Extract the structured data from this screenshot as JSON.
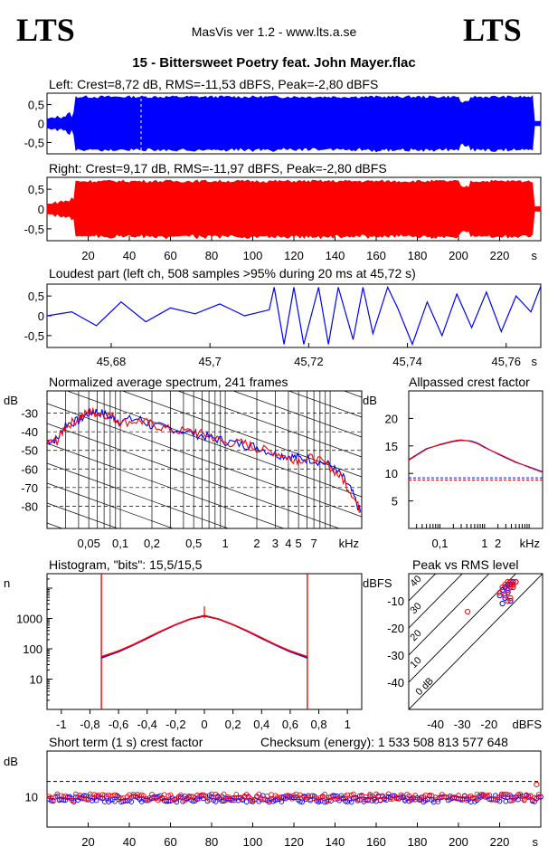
{
  "header": {
    "logo_left": "LTS",
    "logo_right": "LTS",
    "app_title": "MasVis ver 1.2 - www.lts.a.se",
    "file_title": "15 - Bittersweet Poetry feat. John Mayer.flac"
  },
  "colors": {
    "left": "#0000ff",
    "right": "#ff0000"
  },
  "chart_data": [
    {
      "id": "left-waveform",
      "type": "area",
      "title": "Left: Crest=8,72 dB, RMS=-11,53 dBFS, Peak=-2,80 dBFS",
      "ylim": [
        -0.8,
        0.8
      ],
      "yticks": [
        "0,5",
        "0",
        "-0,5"
      ],
      "xlim": [
        0,
        240
      ],
      "envelope_amplitude": 0.72,
      "start_s": 14,
      "end_s": 236,
      "marker_s": 45.72
    },
    {
      "id": "right-waveform",
      "type": "area",
      "title": "Right: Crest=9,17 dB, RMS=-11,97 dBFS, Peak=-2,80 dBFS",
      "ylim": [
        -0.8,
        0.8
      ],
      "yticks": [
        "0,5",
        "0",
        "-0,5"
      ],
      "xlim": [
        0,
        240
      ],
      "xticks": [
        "20",
        "40",
        "60",
        "80",
        "100",
        "120",
        "140",
        "160",
        "180",
        "200",
        "220"
      ],
      "xunit": "s",
      "envelope_amplitude": 0.72,
      "start_s": 14,
      "end_s": 236
    },
    {
      "id": "loudest-part",
      "type": "line",
      "title": "Loudest part (left  ch, 508 samples >95% during 20 ms at 45,72 s)",
      "xlim": [
        45.667,
        45.767
      ],
      "ylim": [
        -0.8,
        0.8
      ],
      "yticks": [
        "0,5",
        "0",
        "-0,5"
      ],
      "xticks": [
        "45,68",
        "45,7",
        "45,72",
        "45,74",
        "45,76"
      ],
      "xunit": "s",
      "x": [
        45.667,
        45.672,
        45.677,
        45.682,
        45.687,
        45.692,
        45.697,
        45.702,
        45.707,
        45.712,
        45.713,
        45.715,
        45.717,
        45.719,
        45.722,
        45.724,
        45.726,
        45.729,
        45.731,
        45.733,
        45.736,
        45.738,
        45.741,
        45.744,
        45.747,
        45.75,
        45.753,
        45.756,
        45.759,
        45.762,
        45.765,
        45.767
      ],
      "y": [
        0.0,
        0.1,
        -0.25,
        0.35,
        -0.15,
        0.2,
        0.05,
        0.3,
        0.0,
        0.15,
        0.72,
        -0.72,
        0.72,
        -0.72,
        0.72,
        -0.72,
        0.72,
        -0.6,
        0.72,
        -0.45,
        0.72,
        0.2,
        -0.72,
        0.35,
        -0.5,
        0.55,
        -0.3,
        0.6,
        -0.4,
        0.5,
        0.1,
        0.75
      ]
    },
    {
      "id": "average-spectrum",
      "type": "line",
      "title": "Normalized average spectrum, 241 frames",
      "yunit": "dB",
      "yticks": [
        "-30",
        "-40",
        "-50",
        "-60",
        "-70",
        "-80"
      ],
      "ylim": [
        -92,
        -18
      ],
      "xscale": "log",
      "xlim": [
        0.02,
        20
      ],
      "xticks": [
        "0,05",
        "0,1",
        "0,2",
        "0,5",
        "1",
        "2",
        "3",
        "4",
        "5",
        "7"
      ],
      "xunit": "kHz",
      "x": [
        0.02,
        0.025,
        0.03,
        0.04,
        0.05,
        0.06,
        0.08,
        0.1,
        0.15,
        0.2,
        0.3,
        0.5,
        0.7,
        1,
        1.5,
        2,
        3,
        4,
        5,
        7,
        10,
        13,
        16,
        20
      ],
      "series": [
        {
          "values": [
            -45,
            -44,
            -36,
            -34,
            -30,
            -29,
            -32,
            -34,
            -33,
            -37,
            -38,
            -41,
            -43,
            -45,
            -47,
            -48,
            -52,
            -53,
            -54,
            -55,
            -58,
            -64,
            -72,
            -85
          ]
        },
        {
          "values": [
            -46,
            -45,
            -37,
            -33,
            -29,
            -30,
            -31,
            -35,
            -34,
            -36,
            -39,
            -40,
            -42,
            -46,
            -46,
            -49,
            -51,
            -54,
            -55,
            -54,
            -59,
            -65,
            -73,
            -84
          ]
        }
      ]
    },
    {
      "id": "allpassed-crest",
      "type": "line",
      "title": "Allpassed crest factor",
      "yunit": "dB",
      "yticks": [
        "20",
        "15",
        "10",
        "5"
      ],
      "ylim": [
        0,
        25
      ],
      "xscale": "log",
      "xlim": [
        0.02,
        20
      ],
      "xticks": [
        "0,1",
        "1",
        "2"
      ],
      "xunit": "kHz",
      "x": [
        0.02,
        0.05,
        0.1,
        0.2,
        0.3,
        0.5,
        0.7,
        1,
        2,
        5,
        10,
        20
      ],
      "series": [
        {
          "values": [
            12.5,
            14.5,
            15.2,
            15.8,
            16.0,
            15.9,
            15.5,
            14.8,
            13.5,
            12.0,
            11.2,
            10.3
          ]
        },
        {
          "values": [
            12.4,
            14.4,
            15.3,
            15.9,
            16.1,
            15.8,
            15.4,
            14.7,
            13.6,
            12.1,
            11.1,
            10.2
          ]
        }
      ],
      "reference_levels": [
        9.2,
        8.8
      ]
    },
    {
      "id": "histogram",
      "type": "line",
      "title": "Histogram, \"bits\": 15,5/15,5",
      "yunit": "n",
      "yscale": "log",
      "ylim": [
        1,
        30000
      ],
      "yticks": [
        "1000",
        "100",
        "10"
      ],
      "xlim": [
        -1.1,
        1.1
      ],
      "xticks": [
        "-1",
        "-0,8",
        "-0,6",
        "-0,4",
        "-0,2",
        "0",
        "0,2",
        "0,4",
        "0,6",
        "0,8",
        "1"
      ],
      "x": [
        -0.72,
        -0.6,
        -0.5,
        -0.4,
        -0.3,
        -0.2,
        -0.1,
        0.0,
        0.1,
        0.2,
        0.3,
        0.4,
        0.5,
        0.6,
        0.72
      ],
      "series": [
        {
          "values": [
            50,
            80,
            130,
            220,
            380,
            620,
            950,
            1200,
            950,
            620,
            380,
            220,
            130,
            80,
            50
          ]
        },
        {
          "values": [
            55,
            85,
            135,
            230,
            390,
            630,
            960,
            1250,
            960,
            630,
            390,
            230,
            135,
            85,
            55
          ]
        }
      ],
      "clip_level": 0.72,
      "center_spike": 2500
    },
    {
      "id": "peak-vs-rms",
      "type": "scatter",
      "title": "Peak vs RMS level",
      "yunit": "dBFS",
      "xunit": "dBFS",
      "xlim": [
        -50,
        0
      ],
      "ylim": [
        -50,
        0
      ],
      "xticks": [
        "-40",
        "-30",
        "-20"
      ],
      "yticks": [
        "-10",
        "-20",
        "-30",
        "-40"
      ],
      "diagonal_labels": [
        "40",
        "30",
        "20",
        "10",
        "0 dB"
      ],
      "series": [
        {
          "x": [
            -12,
            -13,
            -11,
            -14,
            -10,
            -15,
            -12,
            -13,
            -11,
            -16,
            -14,
            -12,
            -13,
            -11,
            -15
          ],
          "y": [
            -3,
            -4,
            -3,
            -5,
            -3,
            -6,
            -4,
            -7,
            -5,
            -8,
            -9,
            -10,
            -6,
            -4,
            -11
          ]
        },
        {
          "x": [
            -12,
            -13,
            -11,
            -14,
            -10,
            -15,
            -12,
            -13,
            -11,
            -16,
            -14,
            -12,
            -13,
            -11,
            -28
          ],
          "y": [
            -3,
            -3,
            -4,
            -4,
            -3,
            -5,
            -5,
            -6,
            -4,
            -7,
            -8,
            -9,
            -10,
            -5,
            -14
          ]
        }
      ]
    },
    {
      "id": "short-term-crest",
      "type": "scatter",
      "title": "Short term (1 s) crest factor",
      "checksum": "Checksum (energy):  1 533 508 813 577 648",
      "yunit": "dB",
      "yticks": [
        "10"
      ],
      "xlim": [
        0,
        240
      ],
      "xticks": [
        "20",
        "40",
        "60",
        "80",
        "100",
        "120",
        "140",
        "160",
        "180",
        "200",
        "220"
      ],
      "xunit": "s",
      "ylim": [
        0,
        25
      ],
      "reference_level": 15,
      "typical_value": 9.5,
      "outliers": [
        {
          "x": 238,
          "y": 14
        }
      ]
    }
  ]
}
